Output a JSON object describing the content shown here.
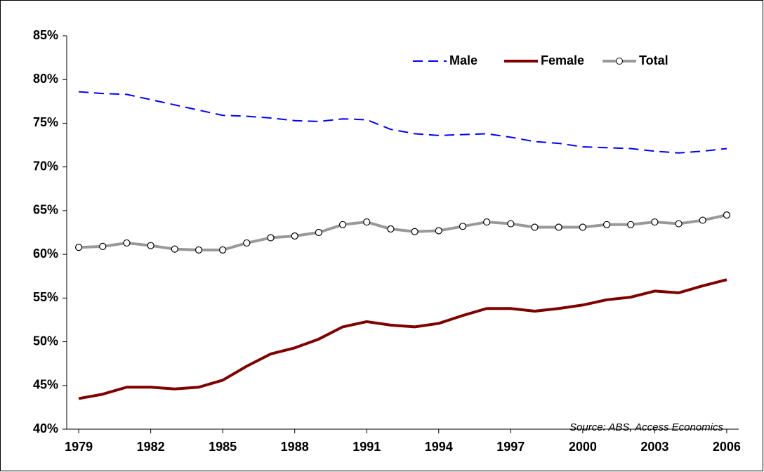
{
  "chart_data": {
    "type": "line",
    "categories": [
      "1979",
      null,
      null,
      "1982",
      null,
      null,
      "1985",
      null,
      null,
      "1988",
      null,
      null,
      "1991",
      null,
      null,
      "1994",
      null,
      null,
      "1997",
      null,
      null,
      "2000",
      null,
      null,
      "2003",
      null,
      null,
      "2006"
    ],
    "series": [
      {
        "name": "Male",
        "color": "#0000ff",
        "style": "dashed",
        "values": [
          78.6,
          78.4,
          78.3,
          77.7,
          77.1,
          76.5,
          75.9,
          75.8,
          75.6,
          75.3,
          75.2,
          75.5,
          75.4,
          74.3,
          73.8,
          73.6,
          73.7,
          73.8,
          73.4,
          72.9,
          72.7,
          72.3,
          72.2,
          72.1,
          71.8,
          71.6,
          71.8,
          72.1
        ]
      },
      {
        "name": "Female",
        "color": "#800000",
        "style": "solid",
        "values": [
          43.5,
          44.0,
          44.8,
          44.8,
          44.6,
          44.8,
          45.6,
          47.2,
          48.6,
          49.3,
          50.3,
          51.7,
          52.3,
          51.9,
          51.7,
          52.1,
          53.0,
          53.8,
          53.8,
          53.5,
          53.8,
          54.2,
          54.8,
          55.1,
          55.8,
          55.6,
          56.4,
          57.1
        ]
      },
      {
        "name": "Total",
        "color": "#999999",
        "style": "markers",
        "values": [
          60.8,
          60.9,
          61.3,
          61.0,
          60.6,
          60.5,
          60.5,
          61.3,
          61.9,
          62.1,
          62.5,
          63.4,
          63.7,
          62.9,
          62.6,
          62.7,
          63.2,
          63.7,
          63.5,
          63.1,
          63.1,
          63.1,
          63.4,
          63.4,
          63.7,
          63.5,
          63.9,
          64.5
        ]
      }
    ],
    "ylim": [
      40,
      85
    ],
    "yticks": [
      {
        "value": 40,
        "label": "40%"
      },
      {
        "value": 45,
        "label": "45%"
      },
      {
        "value": 50,
        "label": "50%"
      },
      {
        "value": 55,
        "label": "55%"
      },
      {
        "value": 60,
        "label": "60%"
      },
      {
        "value": 65,
        "label": "65%"
      },
      {
        "value": 70,
        "label": "70%"
      },
      {
        "value": 75,
        "label": "75%"
      },
      {
        "value": 80,
        "label": "80%"
      },
      {
        "value": 85,
        "label": "85%"
      }
    ],
    "annotation": "Source: ABS, Access Economics",
    "legend": "top-right"
  }
}
